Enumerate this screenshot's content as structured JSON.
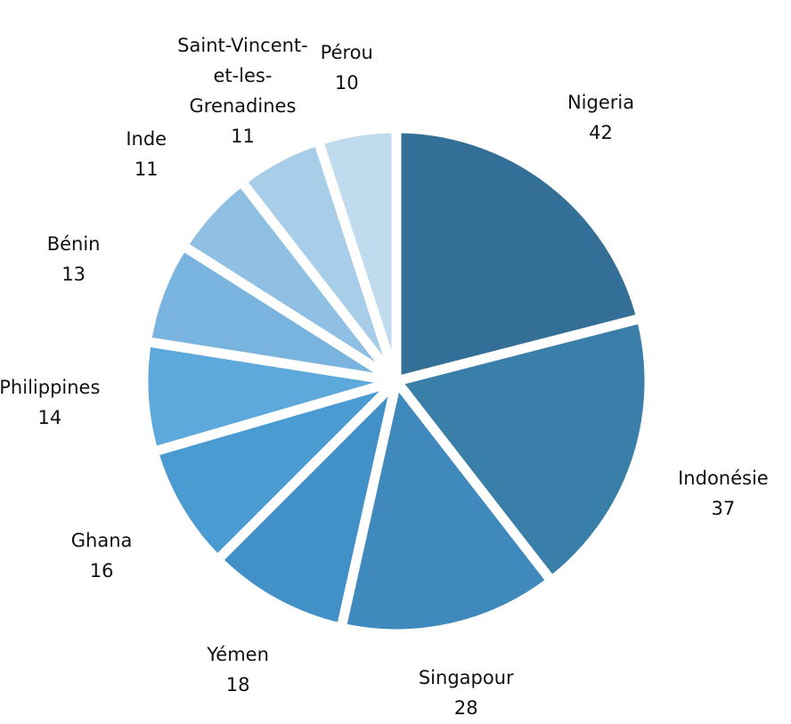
{
  "chart_data": {
    "type": "pie",
    "categories": [
      "Nigeria",
      "Indonésie",
      "Singapour",
      "Yémen",
      "Ghana",
      "Philippines",
      "Bénin",
      "Inde",
      "Saint-Vincent-et-les-Grenadines",
      "Pérou"
    ],
    "values": [
      42,
      37,
      28,
      18,
      16,
      14,
      13,
      11,
      11,
      10
    ],
    "colors": [
      "#336f97",
      "#3a7eaa",
      "#3f89bd",
      "#4290c8",
      "#4a9bd2",
      "#5ea9db",
      "#78b4de",
      "#8fc0e3",
      "#a8cde8",
      "#c0dbee"
    ]
  }
}
